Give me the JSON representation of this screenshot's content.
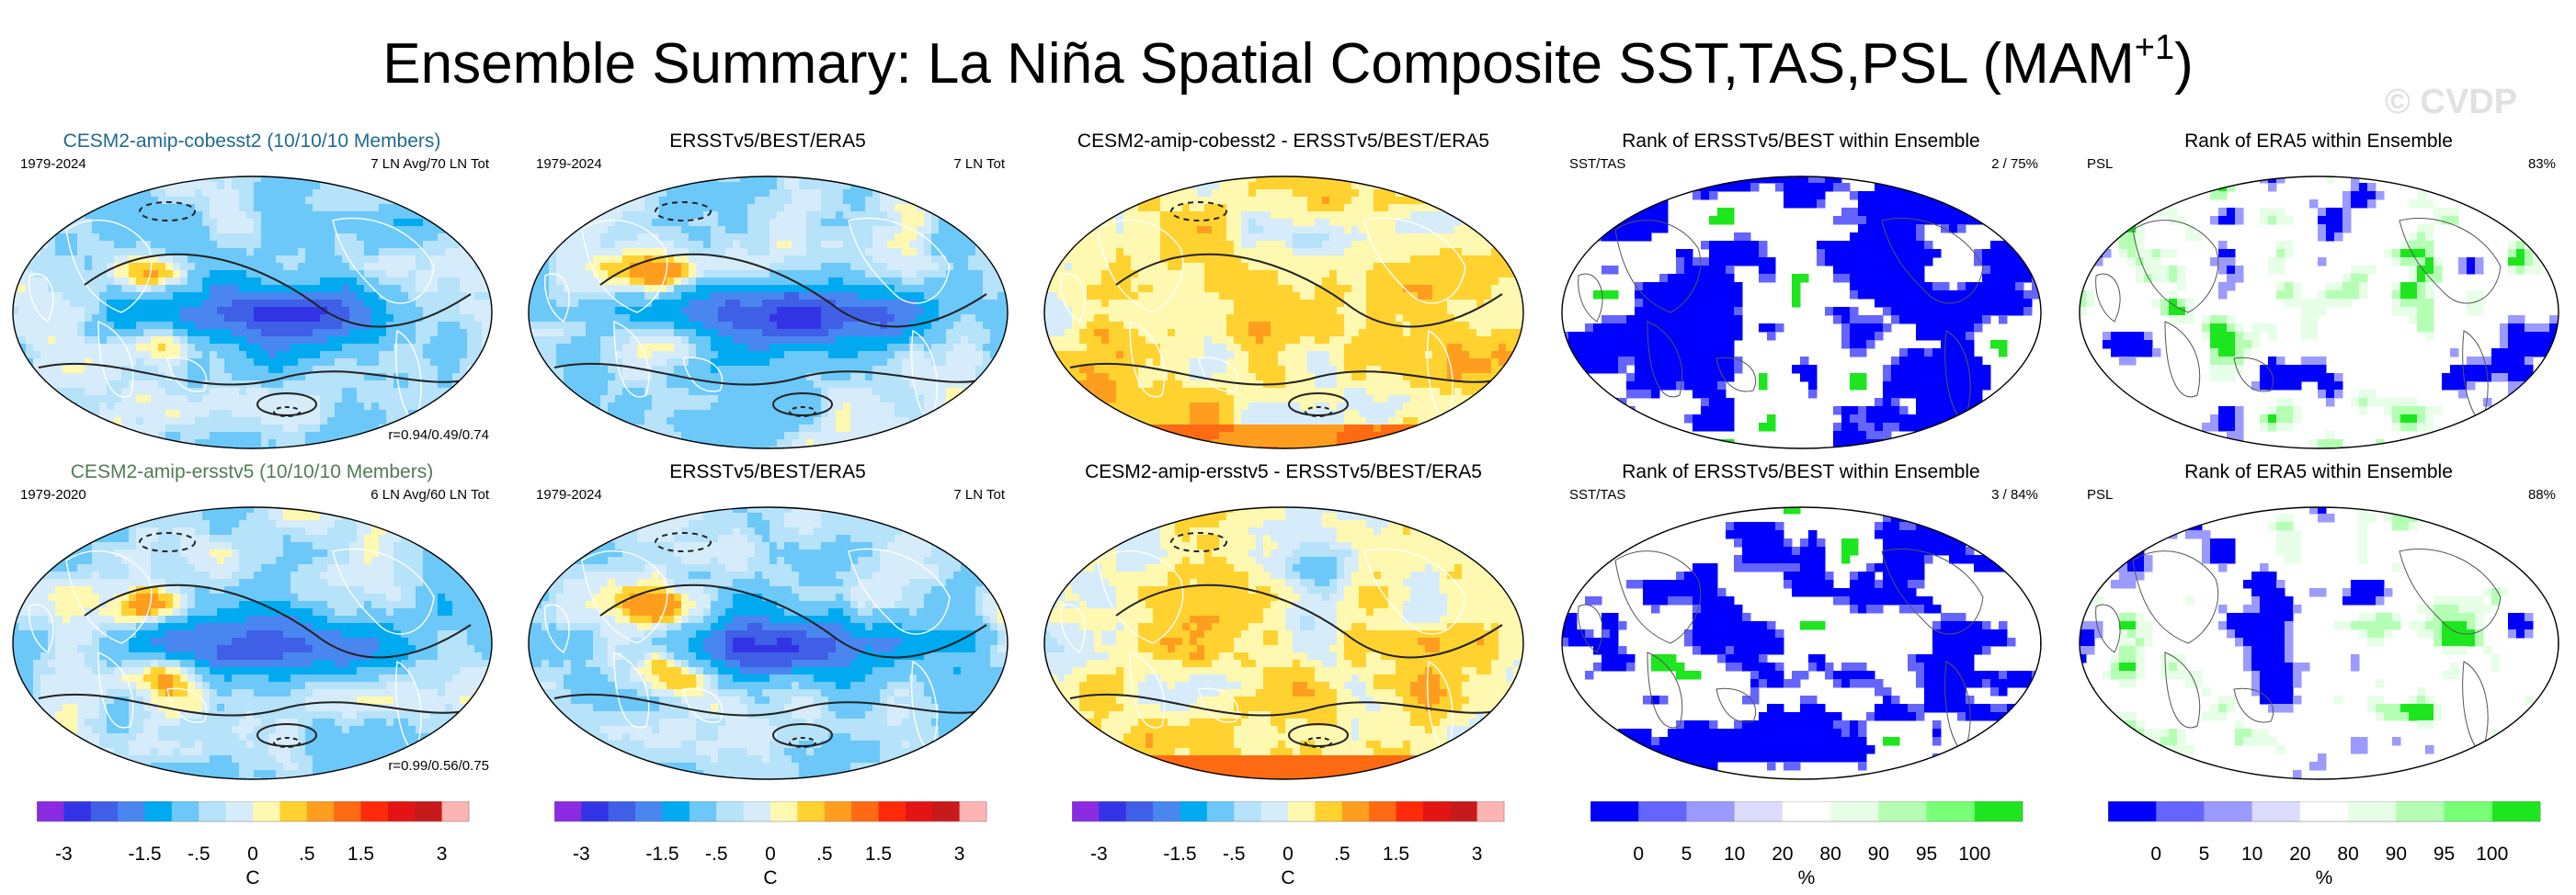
{
  "header": {
    "title_main": "Ensemble Summary: La Niña Spatial Composite SST,TAS,PSL (MAM",
    "title_sup": "+1",
    "title_end": ")",
    "watermark": "© CVDP"
  },
  "colors": {
    "title_blue_model": "#1f6a93",
    "title_green_model": "#4f7d54",
    "anom": [
      "#8a2be2",
      "#3333e6",
      "#3f5fe6",
      "#4a86f0",
      "#00aaf0",
      "#6cc8f8",
      "#b6e2fa",
      "#d6ecfa",
      "#fff8b0",
      "#ffd230",
      "#ff9e1e",
      "#ff6a12",
      "#ff2a0a",
      "#e51414",
      "#c81a1a",
      "#ffb4b4"
    ],
    "rank": [
      "#0000ff",
      "#6464ff",
      "#9a9aff",
      "#dcdcff",
      "#ffffff",
      "#e6ffe6",
      "#b4ffb4",
      "#78ff78",
      "#1ee61e"
    ]
  },
  "rows": [
    {
      "panels": [
        {
          "title": "CESM2-amip-cobesst2 (10/10/10 Members)",
          "left_label": "1979-2024",
          "right_label": "7 LN Avg/70 LN Tot",
          "corner_label": "r=0.94/0.49/0.74"
        },
        {
          "title": "ERSSTv5/BEST/ERA5",
          "left_label": "1979-2024",
          "right_label": "7 LN Tot"
        },
        {
          "title": "CESM2-amip-cobesst2 - ERSSTv5/BEST/ERA5"
        },
        {
          "title": "Rank of ERSSTv5/BEST within Ensemble",
          "left_label": "SST/TAS",
          "right_label": "2 /  75%"
        },
        {
          "title": "Rank of ERA5 within Ensemble",
          "left_label": "PSL",
          "right_label": "83%"
        }
      ]
    },
    {
      "panels": [
        {
          "title": "CESM2-amip-ersstv5 (10/10/10 Members)",
          "left_label": "1979-2020",
          "right_label": "6 LN Avg/60 LN Tot",
          "corner_label": "r=0.99/0.56/0.75"
        },
        {
          "title": "ERSSTv5/BEST/ERA5",
          "left_label": "1979-2024",
          "right_label": "7 LN Tot"
        },
        {
          "title": "CESM2-amip-ersstv5 - ERSSTv5/BEST/ERA5"
        },
        {
          "title": "Rank of ERSSTv5/BEST within Ensemble",
          "left_label": "SST/TAS",
          "right_label": "3 /  84%"
        },
        {
          "title": "Rank of ERA5 within Ensemble",
          "left_label": "PSL",
          "right_label": "88%"
        }
      ]
    }
  ],
  "colorbars": {
    "anomaly": {
      "ticks": [
        "-3",
        "-1.5",
        "-.5",
        "0",
        ".5",
        "1.5",
        "3"
      ],
      "unit": "C"
    },
    "rank": {
      "ticks": [
        "0",
        "5",
        "10",
        "20",
        "80",
        "90",
        "95",
        "100"
      ],
      "unit": "%"
    }
  },
  "chart_data": {
    "type": "heatmap",
    "title": "Ensemble Summary: La Niña Spatial Composite SST,TAS,PSL (MAM+1)",
    "projection": "Robinson, Pacific-centered global maps",
    "anomaly_colorbar_levels": [
      -3,
      -2.5,
      -2,
      -1.5,
      -1,
      -0.5,
      -0.25,
      0,
      0.25,
      0.5,
      1,
      1.5,
      2,
      2.5,
      3
    ],
    "anomaly_unit": "C",
    "rank_colorbar_levels": [
      0,
      5,
      10,
      20,
      80,
      90,
      95,
      100
    ],
    "rank_unit": "%",
    "rank_summary": [
      {
        "row": 1,
        "variable": "SST/TAS",
        "rank": 2,
        "percent": 75
      },
      {
        "row": 1,
        "variable": "PSL",
        "percent": 83
      },
      {
        "row": 2,
        "variable": "SST/TAS",
        "rank": 3,
        "percent": 84
      },
      {
        "row": 2,
        "variable": "PSL",
        "percent": 88
      }
    ],
    "pattern_correlations": [
      {
        "model": "CESM2-amip-cobesst2",
        "r": [
          0.94,
          0.49,
          0.74
        ]
      },
      {
        "model": "CESM2-amip-ersstv5",
        "r": [
          0.99,
          0.56,
          0.75
        ]
      }
    ]
  }
}
